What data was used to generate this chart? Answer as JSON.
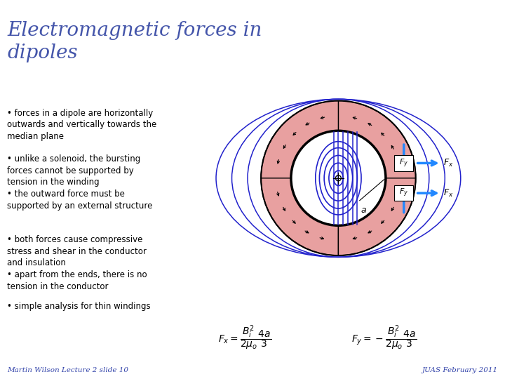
{
  "title": "Electromagnetic forces in\ndipoles",
  "title_color": "#4455aa",
  "title_fontsize": 20,
  "background_color": "#ffffff",
  "bullet_points": [
    "forces in a dipole are horizontally\noutwards and vertically towards the\nmedian plane",
    "unlike a solenoid, the bursting\nforces cannot be supported by\ntension in the winding",
    "the outward force must be\nsupported by an external structure",
    "both forces cause compressive\nstress and shear in the conductor\nand insulation",
    "apart from the ends, there is no\ntension in the conductor",
    "simple analysis for thin windings"
  ],
  "bullet_fontsize": 8.5,
  "formula_bg": "#ffffcc",
  "formula_fontsize": 10,
  "footer_left": "Martin Wilson Lecture 2 slide 10",
  "footer_right": "JUAS February 2011",
  "footer_color": "#3344aa",
  "footer_fontsize": 7.5,
  "pink_color": "#e8a0a0",
  "blue_line_color": "#2222cc",
  "arrow_color": "#2288ff"
}
